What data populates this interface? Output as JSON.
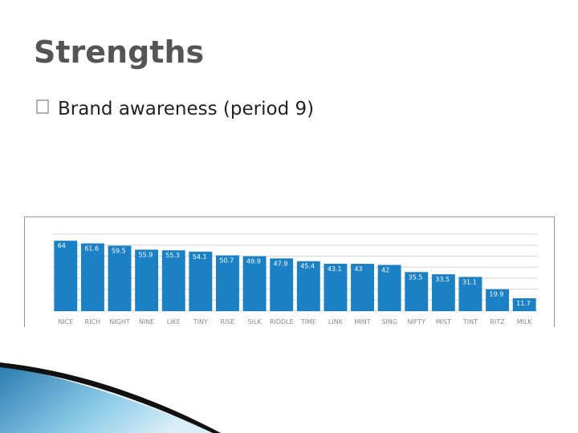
{
  "slide": {
    "title": "Strengths",
    "bullet": "Brand awareness (period 9)"
  },
  "chart_data": {
    "type": "bar",
    "categories": [
      "NICE",
      "RICH",
      "NIGHT",
      "NINE",
      "LIKE",
      "TINY",
      "RISE",
      "SILK",
      "RIDDLE",
      "TIME",
      "LINK",
      "MINT",
      "SING",
      "NIFTY",
      "MIST",
      "TINT",
      "RITZ",
      "MILK"
    ],
    "values": [
      64,
      61.6,
      59.5,
      55.9,
      55.3,
      54.1,
      50.7,
      49.9,
      47.9,
      45.4,
      43.1,
      43,
      42,
      35.5,
      33.5,
      31.1,
      19.9,
      11.7
    ],
    "color": "#1b80c4",
    "ylim": [
      0,
      70
    ],
    "yticks": [
      0,
      10,
      20,
      30,
      40,
      50,
      60,
      70
    ],
    "grid": true
  }
}
